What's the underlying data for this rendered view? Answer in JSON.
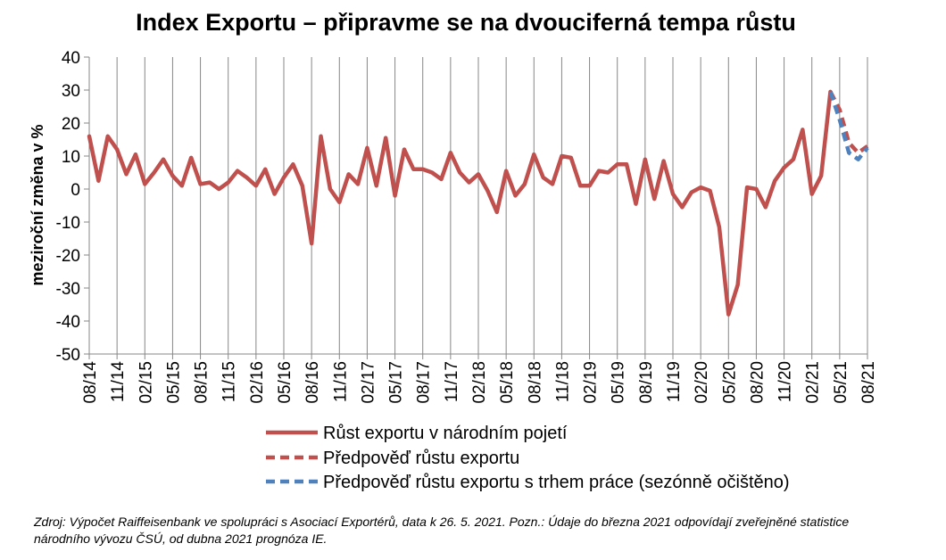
{
  "chart_data": {
    "type": "line",
    "title": "Index Exportu – připravme se na dvouciferná tempa růstu",
    "ylabel": "meziroční změna v %",
    "xlabel": "",
    "ylim": [
      -50,
      40
    ],
    "ytick_step": 10,
    "grid": "vertical",
    "legend_position": "bottom",
    "x": [
      "08/14",
      "09/14",
      "10/14",
      "11/14",
      "12/14",
      "01/15",
      "02/15",
      "03/15",
      "04/15",
      "05/15",
      "06/15",
      "07/15",
      "08/15",
      "09/15",
      "10/15",
      "11/15",
      "12/15",
      "01/16",
      "02/16",
      "03/16",
      "04/16",
      "05/16",
      "06/16",
      "07/16",
      "08/16",
      "09/16",
      "10/16",
      "11/16",
      "12/16",
      "01/17",
      "02/17",
      "03/17",
      "04/17",
      "05/17",
      "06/17",
      "07/17",
      "08/17",
      "09/17",
      "10/17",
      "11/17",
      "12/17",
      "01/18",
      "02/18",
      "03/18",
      "04/18",
      "05/18",
      "06/18",
      "07/18",
      "08/18",
      "09/18",
      "10/18",
      "11/18",
      "12/18",
      "01/19",
      "02/19",
      "03/19",
      "04/19",
      "05/19",
      "06/19",
      "07/19",
      "08/19",
      "09/19",
      "10/19",
      "11/19",
      "12/19",
      "01/20",
      "02/20",
      "03/20",
      "04/20",
      "05/20",
      "06/20",
      "07/20",
      "08/20",
      "09/20",
      "10/20",
      "11/20",
      "12/20",
      "01/21",
      "02/21",
      "03/21",
      "04/21",
      "05/21",
      "06/21",
      "07/21",
      "08/21"
    ],
    "x_tick_labels": [
      "08/14",
      "11/14",
      "02/15",
      "05/15",
      "08/15",
      "11/15",
      "02/16",
      "05/16",
      "08/16",
      "11/16",
      "02/17",
      "05/17",
      "08/17",
      "11/17",
      "02/18",
      "05/18",
      "08/18",
      "11/18",
      "02/19",
      "05/19",
      "08/19",
      "11/19",
      "02/20",
      "05/20",
      "08/20",
      "11/20",
      "02/21",
      "05/21",
      "08/21"
    ],
    "series": [
      {
        "name": "Růst exportu v národním pojetí",
        "color": "#C0504D",
        "style": "solid",
        "values": [
          16,
          2.5,
          16,
          12,
          4.5,
          10.5,
          1.5,
          5,
          9,
          4,
          1,
          9.5,
          1.5,
          2,
          0,
          2,
          5.5,
          3.5,
          1,
          6,
          -1.5,
          3.5,
          7.5,
          1,
          -16.5,
          16,
          0,
          -4,
          4.5,
          1.5,
          12.5,
          1,
          15.5,
          -2,
          12,
          6,
          6,
          5,
          3,
          11,
          5,
          2,
          4.5,
          -0.5,
          -7,
          5.5,
          -2,
          1.5,
          10.5,
          3.5,
          1.5,
          10,
          9.5,
          1,
          1,
          5.5,
          5,
          7.5,
          7.5,
          -4.5,
          9,
          -3,
          8.5,
          -1.5,
          -5.5,
          -1,
          0.5,
          -0.5,
          -11.5,
          -38,
          -29,
          0.5,
          0,
          -5.5,
          2.5,
          6.5,
          9,
          18,
          -1.5,
          4,
          29.5,
          null,
          null,
          null,
          null
        ]
      },
      {
        "name": "Předpověď růstu exportu",
        "color": "#C0504D",
        "style": "dashed",
        "values": [
          null,
          null,
          null,
          null,
          null,
          null,
          null,
          null,
          null,
          null,
          null,
          null,
          null,
          null,
          null,
          null,
          null,
          null,
          null,
          null,
          null,
          null,
          null,
          null,
          null,
          null,
          null,
          null,
          null,
          null,
          null,
          null,
          null,
          null,
          null,
          null,
          null,
          null,
          null,
          null,
          null,
          null,
          null,
          null,
          null,
          null,
          null,
          null,
          null,
          null,
          null,
          null,
          null,
          null,
          null,
          null,
          null,
          null,
          null,
          null,
          null,
          null,
          null,
          null,
          null,
          null,
          null,
          null,
          null,
          null,
          null,
          null,
          null,
          null,
          null,
          null,
          null,
          null,
          null,
          null,
          29.5,
          24,
          14,
          11,
          13
        ]
      },
      {
        "name": "Předpověď růstu exportu s trhem práce (sezónně očištěno)",
        "color": "#4F81BD",
        "style": "dashed",
        "values": [
          null,
          null,
          null,
          null,
          null,
          null,
          null,
          null,
          null,
          null,
          null,
          null,
          null,
          null,
          null,
          null,
          null,
          null,
          null,
          null,
          null,
          null,
          null,
          null,
          null,
          null,
          null,
          null,
          null,
          null,
          null,
          null,
          null,
          null,
          null,
          null,
          null,
          null,
          null,
          null,
          null,
          null,
          null,
          null,
          null,
          null,
          null,
          null,
          null,
          null,
          null,
          null,
          null,
          null,
          null,
          null,
          null,
          null,
          null,
          null,
          null,
          null,
          null,
          null,
          null,
          null,
          null,
          null,
          null,
          null,
          null,
          null,
          null,
          null,
          null,
          null,
          null,
          null,
          null,
          null,
          29.5,
          21,
          11,
          9,
          12.5
        ]
      }
    ]
  },
  "footnote": {
    "line1": "Zdroj: Výpočet Raiffeisenbank ve spolupráci s Asociací Exportérů, data k 26. 5. 2021. Pozn.: Údaje do března 2021 odpovídají zveřejněné statistice",
    "line2": "národního vývozu ČSÚ, od dubna 2021 prognóza IE."
  }
}
